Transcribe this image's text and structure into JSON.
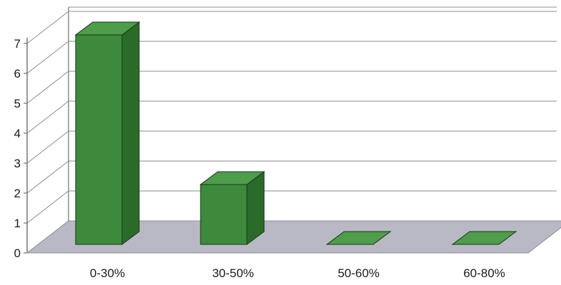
{
  "chart_data": {
    "type": "bar",
    "style": "3d",
    "title": "",
    "xlabel": "",
    "ylabel": "",
    "categories": [
      "0-30%",
      "30-50%",
      "50-60%",
      "60-80%"
    ],
    "values": [
      7,
      2,
      0,
      0
    ],
    "ylim": [
      0,
      7
    ],
    "yticks": [
      "0",
      "1",
      "2",
      "3",
      "4",
      "5",
      "6",
      "7"
    ],
    "grid": true,
    "legend": "none",
    "colors": {
      "bar_front": "#3e8a3c",
      "bar_top": "#4f9c4b",
      "bar_side": "#2b6b2a",
      "bar_edge": "#123812",
      "floor": "#b9b9c5",
      "gridline": "#8a8a8a",
      "wall_edge": "#555555"
    }
  }
}
